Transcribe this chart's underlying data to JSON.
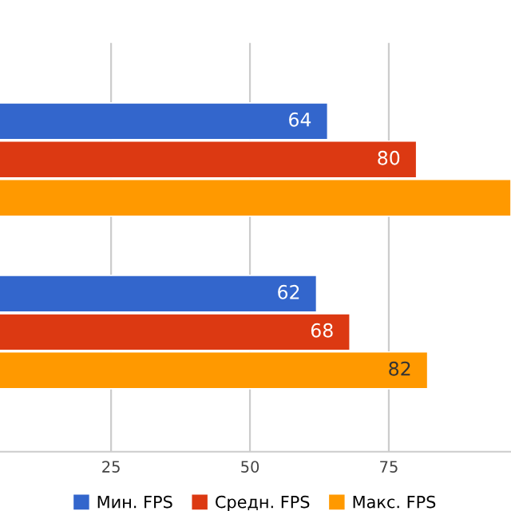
{
  "chart_data": {
    "type": "bar",
    "orientation": "horizontal",
    "categories": [
      null,
      null
    ],
    "series": [
      {
        "name": "Мин. FPS",
        "color": "#3366cc",
        "values": [
          64,
          62
        ],
        "value_labels": [
          "64",
          "62"
        ]
      },
      {
        "name": "Средн. FPS",
        "color": "#dc3912",
        "values": [
          80,
          68
        ],
        "value_labels": [
          "80",
          "68"
        ]
      },
      {
        "name": "Макс. FPS",
        "color": "#ff9900",
        "values": [
          97,
          82
        ],
        "value_labels": [
          null,
          "82"
        ]
      }
    ],
    "xlim": [
      5,
      97
    ],
    "xticks": [
      25,
      50,
      75
    ],
    "grid": "x",
    "legend": "bottom"
  }
}
